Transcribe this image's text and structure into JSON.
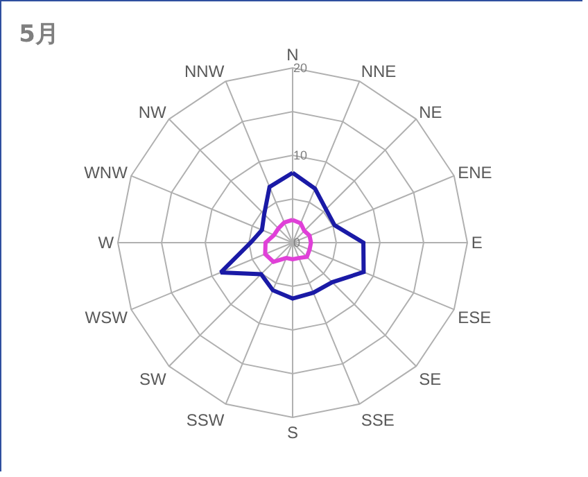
{
  "chart_data": {
    "type": "radar",
    "title": "5月",
    "categories": [
      "N",
      "NNE",
      "NE",
      "ENE",
      "E",
      "ESE",
      "SE",
      "SSE",
      "S",
      "SSW",
      "SW",
      "WSW",
      "W",
      "WNW",
      "NW",
      "NNW"
    ],
    "series": [
      {
        "color": "#1a1aa6",
        "values": [
          8.0,
          6.7,
          5.4,
          5.2,
          8.1,
          8.8,
          6.4,
          6.2,
          6.4,
          5.9,
          5.1,
          8.9,
          4.8,
          3.8,
          4.6,
          6.9
        ]
      },
      {
        "color": "#e040d8",
        "values": [
          2.6,
          2.4,
          1.9,
          2.1,
          2.1,
          2.1,
          2.3,
          1.9,
          1.9,
          1.9,
          3.1,
          3.4,
          3.1,
          2.3,
          2.3,
          2.5
        ]
      }
    ],
    "ylim": [
      0,
      20
    ],
    "yticks": [
      0,
      10,
      20
    ],
    "grid": true,
    "marker": "none",
    "line_style": "solid"
  }
}
